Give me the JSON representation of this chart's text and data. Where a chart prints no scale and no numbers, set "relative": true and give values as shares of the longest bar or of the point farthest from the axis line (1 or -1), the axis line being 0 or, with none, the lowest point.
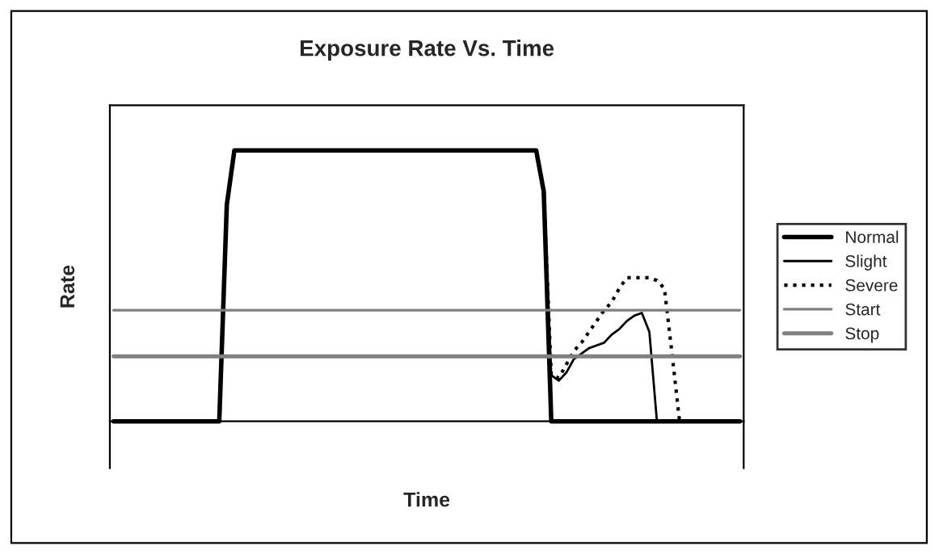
{
  "chart_data": {
    "type": "line",
    "title": "Exposure Rate Vs. Time",
    "xlabel": "Time",
    "ylabel": "Rate",
    "relative": true,
    "legend": "right",
    "grid": false,
    "marker": "none",
    "categories": [
      null,
      null,
      null,
      null,
      null,
      null,
      null,
      null,
      null,
      null,
      null,
      null,
      null,
      null,
      null,
      null,
      null,
      null,
      null,
      null,
      null,
      null,
      null,
      null,
      null,
      null,
      null,
      null,
      null,
      null,
      null,
      null,
      null,
      null,
      null,
      null,
      null,
      null,
      null,
      null,
      null,
      null,
      null,
      null,
      null,
      null,
      null,
      null,
      null,
      null,
      null,
      null,
      null,
      null,
      null,
      null,
      null,
      null,
      null,
      null,
      null,
      null,
      null,
      null,
      null,
      null,
      null,
      null,
      null,
      null,
      null,
      null,
      null,
      null,
      null,
      null,
      null,
      null,
      null,
      null,
      null,
      null,
      null,
      null
    ],
    "series": [
      {
        "name": "Normal",
        "color": "#000000",
        "line_style": "solid",
        "values": [
          0,
          0,
          0,
          0,
          0,
          0,
          0,
          0,
          0,
          0,
          0,
          0,
          0,
          0,
          0,
          0.8,
          1,
          1,
          1,
          1,
          1,
          1,
          1,
          1,
          1,
          1,
          1,
          1,
          1,
          1,
          1,
          1,
          1,
          1,
          1,
          1,
          1,
          1,
          1,
          1,
          1,
          1,
          1,
          1,
          1,
          1,
          1,
          1,
          1,
          1,
          1,
          1,
          1,
          1,
          1,
          1,
          1,
          0.85,
          0,
          0,
          0,
          0,
          0,
          0,
          0,
          0,
          0,
          0,
          0,
          0,
          0,
          0,
          0,
          0,
          0,
          0,
          0,
          0,
          0,
          0,
          0,
          0,
          0,
          0
        ]
      },
      {
        "name": "Slight",
        "color": "#000000",
        "line_style": "solid",
        "values": [
          0,
          0,
          0,
          0,
          0,
          0,
          0,
          0,
          0,
          0,
          0,
          0,
          0,
          0,
          0,
          0.8,
          1,
          1,
          1,
          1,
          1,
          1,
          1,
          1,
          1,
          1,
          1,
          1,
          1,
          1,
          1,
          1,
          1,
          1,
          1,
          1,
          1,
          1,
          1,
          1,
          1,
          1,
          1,
          1,
          1,
          1,
          1,
          1,
          1,
          1,
          1,
          1,
          1,
          1,
          1,
          1,
          1,
          0.85,
          0.17,
          0.15,
          0.18,
          0.23,
          0.25,
          0.27,
          0.28,
          0.29,
          0.32,
          0.34,
          0.37,
          0.39,
          0.4,
          0.33,
          0,
          0,
          0,
          0,
          0,
          0,
          0,
          0,
          0,
          0,
          0,
          0
        ]
      },
      {
        "name": "Severe",
        "color": "#000000",
        "line_style": "dotted",
        "values": [
          0,
          0,
          0,
          0,
          0,
          0,
          0,
          0,
          0,
          0,
          0,
          0,
          0,
          0,
          0,
          0.8,
          1,
          1,
          1,
          1,
          1,
          1,
          1,
          1,
          1,
          1,
          1,
          1,
          1,
          1,
          1,
          1,
          1,
          1,
          1,
          1,
          1,
          1,
          1,
          1,
          1,
          1,
          1,
          1,
          1,
          1,
          1,
          1,
          1,
          1,
          1,
          1,
          1,
          1,
          1,
          1,
          1,
          0.85,
          0.17,
          0.16,
          0.21,
          0.26,
          0.29,
          0.33,
          0.37,
          0.41,
          0.44,
          0.49,
          0.53,
          0.53,
          0.53,
          0.53,
          0.52,
          0.49,
          0.25,
          0,
          0,
          0,
          0,
          0,
          0,
          0,
          0,
          0
        ]
      },
      {
        "name": "Start",
        "color": "#808080",
        "line_style": "solid",
        "values": [
          0.41,
          0.41,
          0.41,
          0.41,
          0.41,
          0.41,
          0.41,
          0.41,
          0.41,
          0.41,
          0.41,
          0.41,
          0.41,
          0.41,
          0.41,
          0.41,
          0.41,
          0.41,
          0.41,
          0.41,
          0.41,
          0.41,
          0.41,
          0.41,
          0.41,
          0.41,
          0.41,
          0.41,
          0.41,
          0.41,
          0.41,
          0.41,
          0.41,
          0.41,
          0.41,
          0.41,
          0.41,
          0.41,
          0.41,
          0.41,
          0.41,
          0.41,
          0.41,
          0.41,
          0.41,
          0.41,
          0.41,
          0.41,
          0.41,
          0.41,
          0.41,
          0.41,
          0.41,
          0.41,
          0.41,
          0.41,
          0.41,
          0.41,
          0.41,
          0.41,
          0.41,
          0.41,
          0.41,
          0.41,
          0.41,
          0.41,
          0.41,
          0.41,
          0.41,
          0.41,
          0.41,
          0.41,
          0.41,
          0.41,
          0.41,
          0.41,
          0.41,
          0.41,
          0.41,
          0.41,
          0.41,
          0.41,
          0.41,
          0.41
        ]
      },
      {
        "name": "Stop",
        "color": "#808080",
        "line_style": "solid",
        "values": [
          0.24,
          0.24,
          0.24,
          0.24,
          0.24,
          0.24,
          0.24,
          0.24,
          0.24,
          0.24,
          0.24,
          0.24,
          0.24,
          0.24,
          0.24,
          0.24,
          0.24,
          0.24,
          0.24,
          0.24,
          0.24,
          0.24,
          0.24,
          0.24,
          0.24,
          0.24,
          0.24,
          0.24,
          0.24,
          0.24,
          0.24,
          0.24,
          0.24,
          0.24,
          0.24,
          0.24,
          0.24,
          0.24,
          0.24,
          0.24,
          0.24,
          0.24,
          0.24,
          0.24,
          0.24,
          0.24,
          0.24,
          0.24,
          0.24,
          0.24,
          0.24,
          0.24,
          0.24,
          0.24,
          0.24,
          0.24,
          0.24,
          0.24,
          0.24,
          0.24,
          0.24,
          0.24,
          0.24,
          0.24,
          0.24,
          0.24,
          0.24,
          0.24,
          0.24,
          0.24,
          0.24,
          0.24,
          0.24,
          0.24,
          0.24,
          0.24,
          0.24,
          0.24,
          0.24,
          0.24,
          0.24,
          0.24,
          0.24,
          0.24
        ]
      }
    ]
  }
}
